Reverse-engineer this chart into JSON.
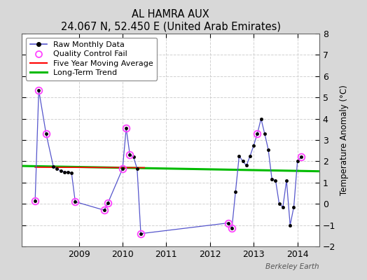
{
  "title": "AL HAMRA AUX",
  "subtitle": "24.067 N, 52.450 E (United Arab Emirates)",
  "ylabel": "Temperature Anomaly (°C)",
  "watermark": "Berkeley Earth",
  "ylim": [
    -2,
    8
  ],
  "yticks": [
    -2,
    -1,
    0,
    1,
    2,
    3,
    4,
    5,
    6,
    7,
    8
  ],
  "xlim": [
    2007.7,
    2014.5
  ],
  "xticks": [
    2009,
    2010,
    2011,
    2012,
    2013,
    2014
  ],
  "bg_color": "#d8d8d8",
  "plot_bg_color": "#ffffff",
  "raw_data": {
    "x": [
      2008.0,
      2008.083,
      2008.25,
      2008.417,
      2008.5,
      2008.583,
      2008.667,
      2008.75,
      2008.833,
      2008.917,
      2009.583,
      2009.667,
      2010.0,
      2010.083,
      2010.167,
      2010.25,
      2010.333,
      2010.417,
      2012.417,
      2012.5,
      2012.583,
      2012.667,
      2012.75,
      2012.833,
      2012.917,
      2013.0,
      2013.083,
      2013.167,
      2013.25,
      2013.333,
      2013.417,
      2013.5,
      2013.583,
      2013.667,
      2013.75,
      2013.833,
      2013.917,
      2014.0,
      2014.083
    ],
    "y": [
      0.15,
      5.35,
      3.3,
      1.75,
      1.65,
      1.55,
      1.5,
      1.5,
      1.45,
      0.1,
      -0.3,
      0.05,
      1.65,
      3.55,
      2.3,
      2.2,
      1.65,
      -1.4,
      -0.9,
      -1.15,
      0.55,
      2.25,
      2.0,
      1.8,
      2.25,
      2.75,
      3.3,
      4.0,
      3.3,
      2.55,
      1.15,
      1.1,
      0.0,
      -0.15,
      1.1,
      -1.0,
      -0.15,
      2.0,
      2.2
    ]
  },
  "qc_fail_x": [
    2008.0,
    2008.083,
    2008.25,
    2008.917,
    2009.583,
    2009.667,
    2010.0,
    2010.083,
    2010.167,
    2010.417,
    2012.417,
    2012.5,
    2013.083,
    2014.083
  ],
  "qc_fail_y": [
    0.15,
    5.35,
    3.3,
    0.1,
    -0.3,
    0.05,
    1.65,
    3.55,
    2.3,
    -1.4,
    -0.9,
    -1.15,
    3.3,
    2.2
  ],
  "long_term_trend": {
    "x": [
      2007.7,
      2014.5
    ],
    "y": [
      1.78,
      1.53
    ]
  },
  "colors": {
    "raw_line": "#5555cc",
    "raw_marker": "#000000",
    "qc_marker": "#ff44ff",
    "ma_line": "#ff0000",
    "trend_line": "#00bb00"
  },
  "legend_labels": {
    "raw": "Raw Monthly Data",
    "qc": "Quality Control Fail",
    "ma": "Five Year Moving Average",
    "trend": "Long-Term Trend"
  }
}
